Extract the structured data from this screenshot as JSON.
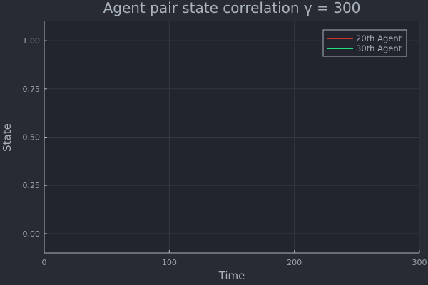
{
  "chart_data": {
    "type": "line",
    "title": "Agent pair state correlation γ = 300",
    "xlabel": "Time",
    "ylabel": "State",
    "xlim": [
      0,
      300
    ],
    "ylim": [
      -0.1,
      1.1
    ],
    "xticks": [
      0,
      100,
      200,
      300
    ],
    "xtick_labels": [
      "0",
      "100",
      "200",
      "300"
    ],
    "yticks": [
      0.0,
      0.25,
      0.5,
      0.75,
      1.0
    ],
    "ytick_labels": [
      "0.00",
      "0.25",
      "0.50",
      "0.75",
      "1.00"
    ],
    "grid": true,
    "legend_position": "top-right",
    "series": [
      {
        "name": "20th Agent",
        "color": "#c0392b",
        "x": [],
        "y": []
      },
      {
        "name": "30th Agent",
        "color": "#1fe07a",
        "x": [],
        "y": []
      }
    ]
  },
  "colors": {
    "background": "#282b33",
    "plot_background": "#22252d",
    "grid": "#333742",
    "axis": "#aab2bd",
    "text": "#aab2bd"
  }
}
